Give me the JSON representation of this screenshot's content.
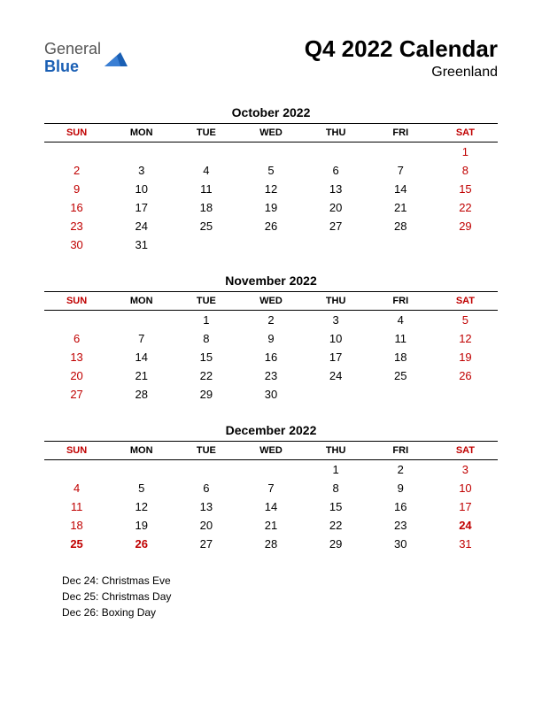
{
  "logo": {
    "word1": "General",
    "word2": "Blue",
    "shape_color": "#1a5fb4"
  },
  "title": "Q4 2022 Calendar",
  "subtitle": "Greenland",
  "day_headers": [
    "SUN",
    "MON",
    "TUE",
    "WED",
    "THU",
    "FRI",
    "SAT"
  ],
  "weekend_columns": [
    0,
    6
  ],
  "weekend_header_color": "#c00000",
  "weekend_cell_color": "#c00000",
  "holiday_color": "#c00000",
  "months": [
    {
      "title": "October 2022",
      "weeks": [
        [
          "",
          "",
          "",
          "",
          "",
          "",
          "1"
        ],
        [
          "2",
          "3",
          "4",
          "5",
          "6",
          "7",
          "8"
        ],
        [
          "9",
          "10",
          "11",
          "12",
          "13",
          "14",
          "15"
        ],
        [
          "16",
          "17",
          "18",
          "19",
          "20",
          "21",
          "22"
        ],
        [
          "23",
          "24",
          "25",
          "26",
          "27",
          "28",
          "29"
        ],
        [
          "30",
          "31",
          "",
          "",
          "",
          "",
          ""
        ]
      ],
      "holidays": []
    },
    {
      "title": "November 2022",
      "weeks": [
        [
          "",
          "",
          "1",
          "2",
          "3",
          "4",
          "5"
        ],
        [
          "6",
          "7",
          "8",
          "9",
          "10",
          "11",
          "12"
        ],
        [
          "13",
          "14",
          "15",
          "16",
          "17",
          "18",
          "19"
        ],
        [
          "20",
          "21",
          "22",
          "23",
          "24",
          "25",
          "26"
        ],
        [
          "27",
          "28",
          "29",
          "30",
          "",
          "",
          ""
        ]
      ],
      "holidays": []
    },
    {
      "title": "December 2022",
      "weeks": [
        [
          "",
          "",
          "",
          "",
          "1",
          "2",
          "3"
        ],
        [
          "4",
          "5",
          "6",
          "7",
          "8",
          "9",
          "10"
        ],
        [
          "11",
          "12",
          "13",
          "14",
          "15",
          "16",
          "17"
        ],
        [
          "18",
          "19",
          "20",
          "21",
          "22",
          "23",
          "24"
        ],
        [
          "25",
          "26",
          "27",
          "28",
          "29",
          "30",
          "31"
        ]
      ],
      "holidays": [
        "24",
        "25",
        "26"
      ]
    }
  ],
  "holiday_list": [
    "Dec 24: Christmas Eve",
    "Dec 25: Christmas Day",
    "Dec 26: Boxing Day"
  ]
}
